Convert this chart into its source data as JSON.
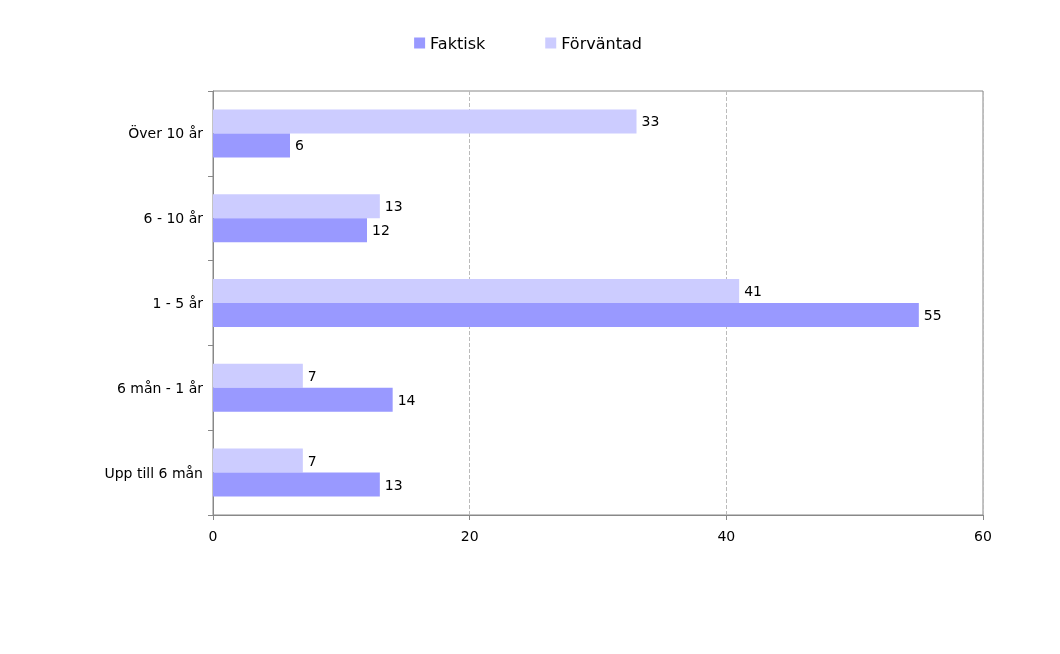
{
  "chart_data": {
    "type": "bar",
    "orientation": "horizontal",
    "categories": [
      "Över 10 år",
      "6 - 10 år",
      "1 - 5 år",
      "6 mån - 1 år",
      "Upp till 6 mån"
    ],
    "series": [
      {
        "name": "Faktisk",
        "color": "#9999ff",
        "values": [
          6,
          12,
          55,
          14,
          13
        ]
      },
      {
        "name": "Förväntad",
        "color": "#ccccff",
        "values": [
          33,
          13,
          41,
          7,
          7
        ]
      }
    ],
    "xlim": [
      0,
      60
    ],
    "xticks": [
      0,
      20,
      40,
      60
    ],
    "grid": "x",
    "legend": "top",
    "data_labels": true
  }
}
